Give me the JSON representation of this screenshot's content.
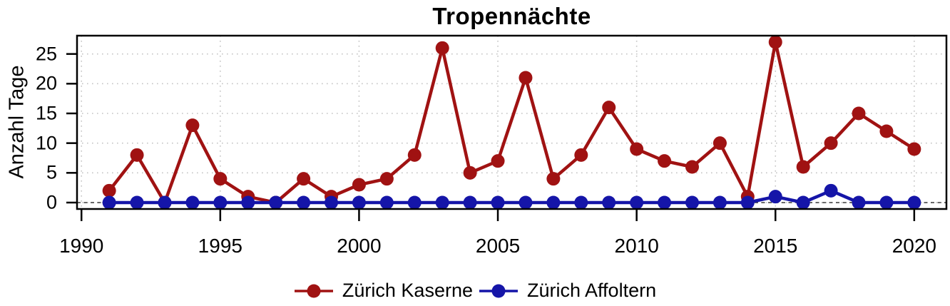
{
  "title": "Tropennächte",
  "y_axis_label": "Anzahl Tage",
  "colors": {
    "kaserne_red": "#A01212",
    "affoltern_blue": "#1515A8",
    "grid": "#C4C4C4",
    "zero_line": "#3A3A3A",
    "axis": "#000000",
    "background": "#FFFFFF"
  },
  "chart_data": {
    "type": "line",
    "title": "Tropennächte",
    "xlabel": "",
    "ylabel": "Anzahl Tage",
    "x": [
      1991,
      1992,
      1993,
      1994,
      1995,
      1996,
      1997,
      1998,
      1999,
      2000,
      2001,
      2002,
      2003,
      2004,
      2005,
      2006,
      2007,
      2008,
      2009,
      2010,
      2011,
      2012,
      2013,
      2014,
      2015,
      2016,
      2017,
      2018,
      2019,
      2020
    ],
    "series": [
      {
        "name": "Zürich Kaserne",
        "color": "#A01212",
        "values": [
          2,
          8,
          0,
          13,
          4,
          1,
          0,
          4,
          1,
          3,
          4,
          8,
          26,
          5,
          7,
          21,
          4,
          8,
          16,
          9,
          7,
          6,
          10,
          1,
          27,
          6,
          10,
          15,
          12,
          9
        ]
      },
      {
        "name": "Zürich Affoltern",
        "color": "#1515A8",
        "values": [
          0,
          0,
          0,
          0,
          0,
          0,
          0,
          0,
          0,
          0,
          0,
          0,
          0,
          0,
          0,
          0,
          0,
          0,
          0,
          0,
          0,
          0,
          0,
          0,
          1,
          0,
          2,
          0,
          0,
          0
        ]
      }
    ],
    "x_ticks": [
      1990,
      1995,
      2000,
      2005,
      2010,
      2015,
      2020
    ],
    "y_ticks": [
      0,
      5,
      10,
      15,
      20,
      25
    ],
    "x_range": [
      1989.84,
      2021.16
    ],
    "y_range": [
      -1.08,
      28.08
    ],
    "grid": true,
    "grid_style": "dotted",
    "zero_line_dashed": true,
    "legend_position": "bottom-center",
    "marker": "filled-circle"
  },
  "legend": {
    "entries": [
      {
        "label": "Zürich Kaserne",
        "color": "#A01212"
      },
      {
        "label": "Zürich Affoltern",
        "color": "#1515A8"
      }
    ]
  }
}
